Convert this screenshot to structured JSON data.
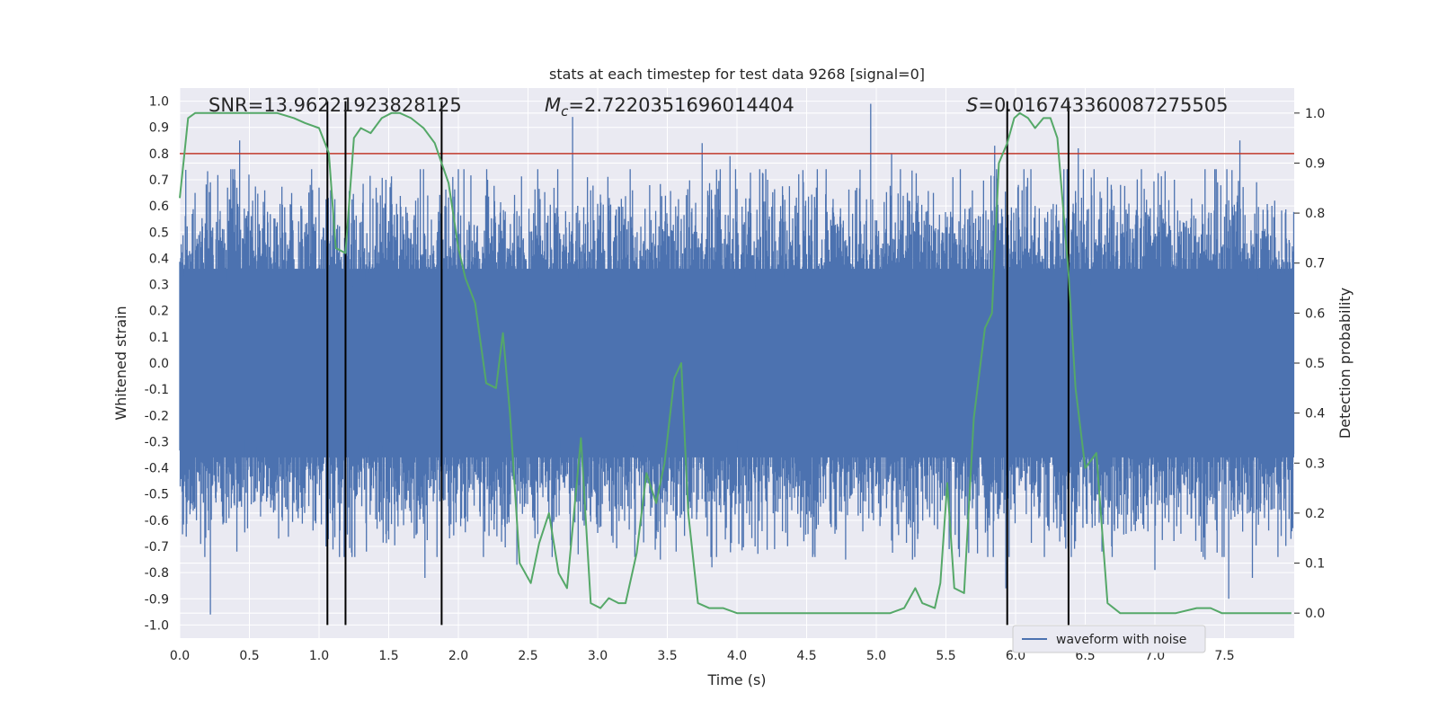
{
  "chart_data": {
    "type": "line",
    "title": "stats at each timestep for test data 9268 [signal=0]",
    "xlabel": "Time (s)",
    "ylabel_left": "Whitened strain",
    "ylabel_right": "Detection probability",
    "xlim": [
      0.0,
      8.0
    ],
    "ylim_left": [
      -1.05,
      1.05
    ],
    "ylim_right": [
      -0.05,
      1.05
    ],
    "x_ticks": [
      "0.0",
      "0.5",
      "1.0",
      "1.5",
      "2.0",
      "2.5",
      "3.0",
      "3.5",
      "4.0",
      "4.5",
      "5.0",
      "5.5",
      "6.0",
      "6.5",
      "7.0",
      "7.5"
    ],
    "y_left_ticks": [
      "1.0",
      "0.9",
      "0.8",
      "0.7",
      "0.6",
      "0.5",
      "0.4",
      "0.3",
      "0.2",
      "0.1",
      "0.0",
      "-0.1",
      "-0.2",
      "-0.3",
      "-0.4",
      "-0.5",
      "-0.6",
      "-0.7",
      "-0.8",
      "-0.9",
      "-1.0"
    ],
    "y_right_ticks": [
      "1.0",
      "0.9",
      "0.8",
      "0.7",
      "0.6",
      "0.5",
      "0.4",
      "0.3",
      "0.2",
      "0.1",
      "0.0"
    ],
    "annotations": {
      "snr": "SNR=13.96221923828125",
      "mc_symbol": "M",
      "mc_sub": "c",
      "mc_value": "=2.7220351696014404",
      "s_symbol": "S",
      "s_value": "=0.016743360087275505"
    },
    "threshold": {
      "value": 0.8,
      "axis": "left",
      "color": "#c0392b"
    },
    "vertical_lines": [
      1.06,
      1.19,
      1.88,
      5.94,
      6.38
    ],
    "waveform": {
      "name": "waveform with noise",
      "color": "#4c72b0",
      "sample_rate": 2048,
      "samples": 16384,
      "envelope_x": [
        0.0,
        8.0
      ],
      "core_band": [
        -0.36,
        0.36
      ],
      "upper_peaks": [
        [
          0.04,
          0.55
        ],
        [
          0.11,
          0.65
        ],
        [
          0.22,
          0.69
        ],
        [
          0.36,
          0.62
        ],
        [
          0.43,
          0.85
        ],
        [
          0.61,
          0.66
        ],
        [
          0.87,
          0.6
        ],
        [
          1.0,
          0.67
        ],
        [
          1.21,
          0.58
        ],
        [
          1.48,
          0.7
        ],
        [
          1.78,
          0.64
        ],
        [
          2.21,
          0.7
        ],
        [
          2.57,
          0.74
        ],
        [
          2.82,
          0.94
        ],
        [
          2.95,
          0.66
        ],
        [
          3.08,
          0.6
        ],
        [
          3.25,
          0.66
        ],
        [
          3.45,
          0.62
        ],
        [
          3.75,
          0.84
        ],
        [
          3.95,
          0.79
        ],
        [
          4.22,
          0.7
        ],
        [
          4.57,
          0.67
        ],
        [
          4.85,
          0.66
        ],
        [
          4.96,
          0.99
        ],
        [
          5.11,
          0.8
        ],
        [
          5.41,
          0.65
        ],
        [
          5.55,
          0.71
        ],
        [
          5.85,
          0.83
        ],
        [
          6.02,
          0.68
        ],
        [
          6.37,
          0.74
        ],
        [
          6.45,
          0.82
        ],
        [
          6.66,
          0.71
        ],
        [
          7.14,
          0.7
        ],
        [
          7.45,
          0.69
        ],
        [
          7.61,
          0.85
        ],
        [
          7.86,
          0.62
        ]
      ],
      "lower_peaks": [
        [
          0.12,
          -0.6
        ],
        [
          0.22,
          -0.96
        ],
        [
          0.41,
          -0.72
        ],
        [
          0.71,
          -0.67
        ],
        [
          1.05,
          -0.7
        ],
        [
          1.34,
          -0.72
        ],
        [
          1.76,
          -0.82
        ],
        [
          2.22,
          -0.66
        ],
        [
          2.42,
          -0.77
        ],
        [
          2.86,
          -0.73
        ],
        [
          3.1,
          -0.66
        ],
        [
          3.45,
          -0.75
        ],
        [
          3.82,
          -0.78
        ],
        [
          4.13,
          -0.7
        ],
        [
          4.48,
          -0.68
        ],
        [
          4.78,
          -0.75
        ],
        [
          4.98,
          -0.6
        ],
        [
          5.26,
          -0.75
        ],
        [
          5.59,
          -0.71
        ],
        [
          5.93,
          -0.86
        ],
        [
          6.24,
          -0.64
        ],
        [
          6.43,
          -0.68
        ],
        [
          6.69,
          -0.7
        ],
        [
          7.0,
          -0.79
        ],
        [
          7.36,
          -0.75
        ],
        [
          7.53,
          -0.9
        ],
        [
          7.7,
          -0.82
        ],
        [
          7.99,
          -0.63
        ]
      ]
    },
    "detection_probability": {
      "color": "#55a868",
      "x": [
        0.0,
        0.03,
        0.06,
        0.11,
        0.2,
        0.35,
        0.5,
        0.7,
        0.82,
        0.9,
        1.0,
        1.07,
        1.12,
        1.19,
        1.25,
        1.3,
        1.37,
        1.45,
        1.52,
        1.58,
        1.66,
        1.75,
        1.83,
        1.88,
        1.93,
        2.0,
        2.05,
        2.12,
        2.2,
        2.27,
        2.32,
        2.37,
        2.44,
        2.52,
        2.58,
        2.65,
        2.72,
        2.78,
        2.88,
        2.95,
        3.02,
        3.08,
        3.15,
        3.2,
        3.28,
        3.35,
        3.42,
        3.48,
        3.55,
        3.6,
        3.65,
        3.72,
        3.8,
        3.9,
        4.0,
        4.2,
        4.5,
        4.8,
        5.0,
        5.1,
        5.2,
        5.28,
        5.33,
        5.42,
        5.46,
        5.51,
        5.56,
        5.63,
        5.7,
        5.78,
        5.83,
        5.88,
        5.94,
        5.99,
        6.03,
        6.09,
        6.14,
        6.2,
        6.25,
        6.3,
        6.38,
        6.43,
        6.5,
        6.58,
        6.66,
        6.75,
        6.88,
        7.0,
        7.15,
        7.3,
        7.4,
        7.48,
        7.6,
        7.8,
        7.98
      ],
      "values": [
        0.83,
        0.91,
        0.99,
        1.0,
        1.0,
        1.0,
        1.0,
        1.0,
        0.99,
        0.98,
        0.97,
        0.92,
        0.73,
        0.72,
        0.95,
        0.97,
        0.96,
        0.99,
        1.0,
        1.0,
        0.99,
        0.97,
        0.94,
        0.9,
        0.86,
        0.73,
        0.67,
        0.62,
        0.46,
        0.45,
        0.56,
        0.4,
        0.1,
        0.06,
        0.14,
        0.2,
        0.08,
        0.05,
        0.35,
        0.02,
        0.01,
        0.03,
        0.02,
        0.02,
        0.12,
        0.28,
        0.22,
        0.3,
        0.47,
        0.5,
        0.2,
        0.02,
        0.01,
        0.01,
        0.0,
        0.0,
        0.0,
        0.0,
        0.0,
        0.0,
        0.01,
        0.05,
        0.02,
        0.01,
        0.06,
        0.26,
        0.05,
        0.04,
        0.39,
        0.57,
        0.6,
        0.9,
        0.94,
        0.99,
        1.0,
        0.99,
        0.97,
        0.99,
        0.99,
        0.95,
        0.68,
        0.45,
        0.29,
        0.32,
        0.02,
        0.0,
        0.0,
        0.0,
        0.0,
        0.01,
        0.01,
        0.0,
        0.0,
        0.0,
        0.0
      ]
    },
    "legend": {
      "label": "waveform with noise",
      "placement": "lower-right"
    }
  }
}
